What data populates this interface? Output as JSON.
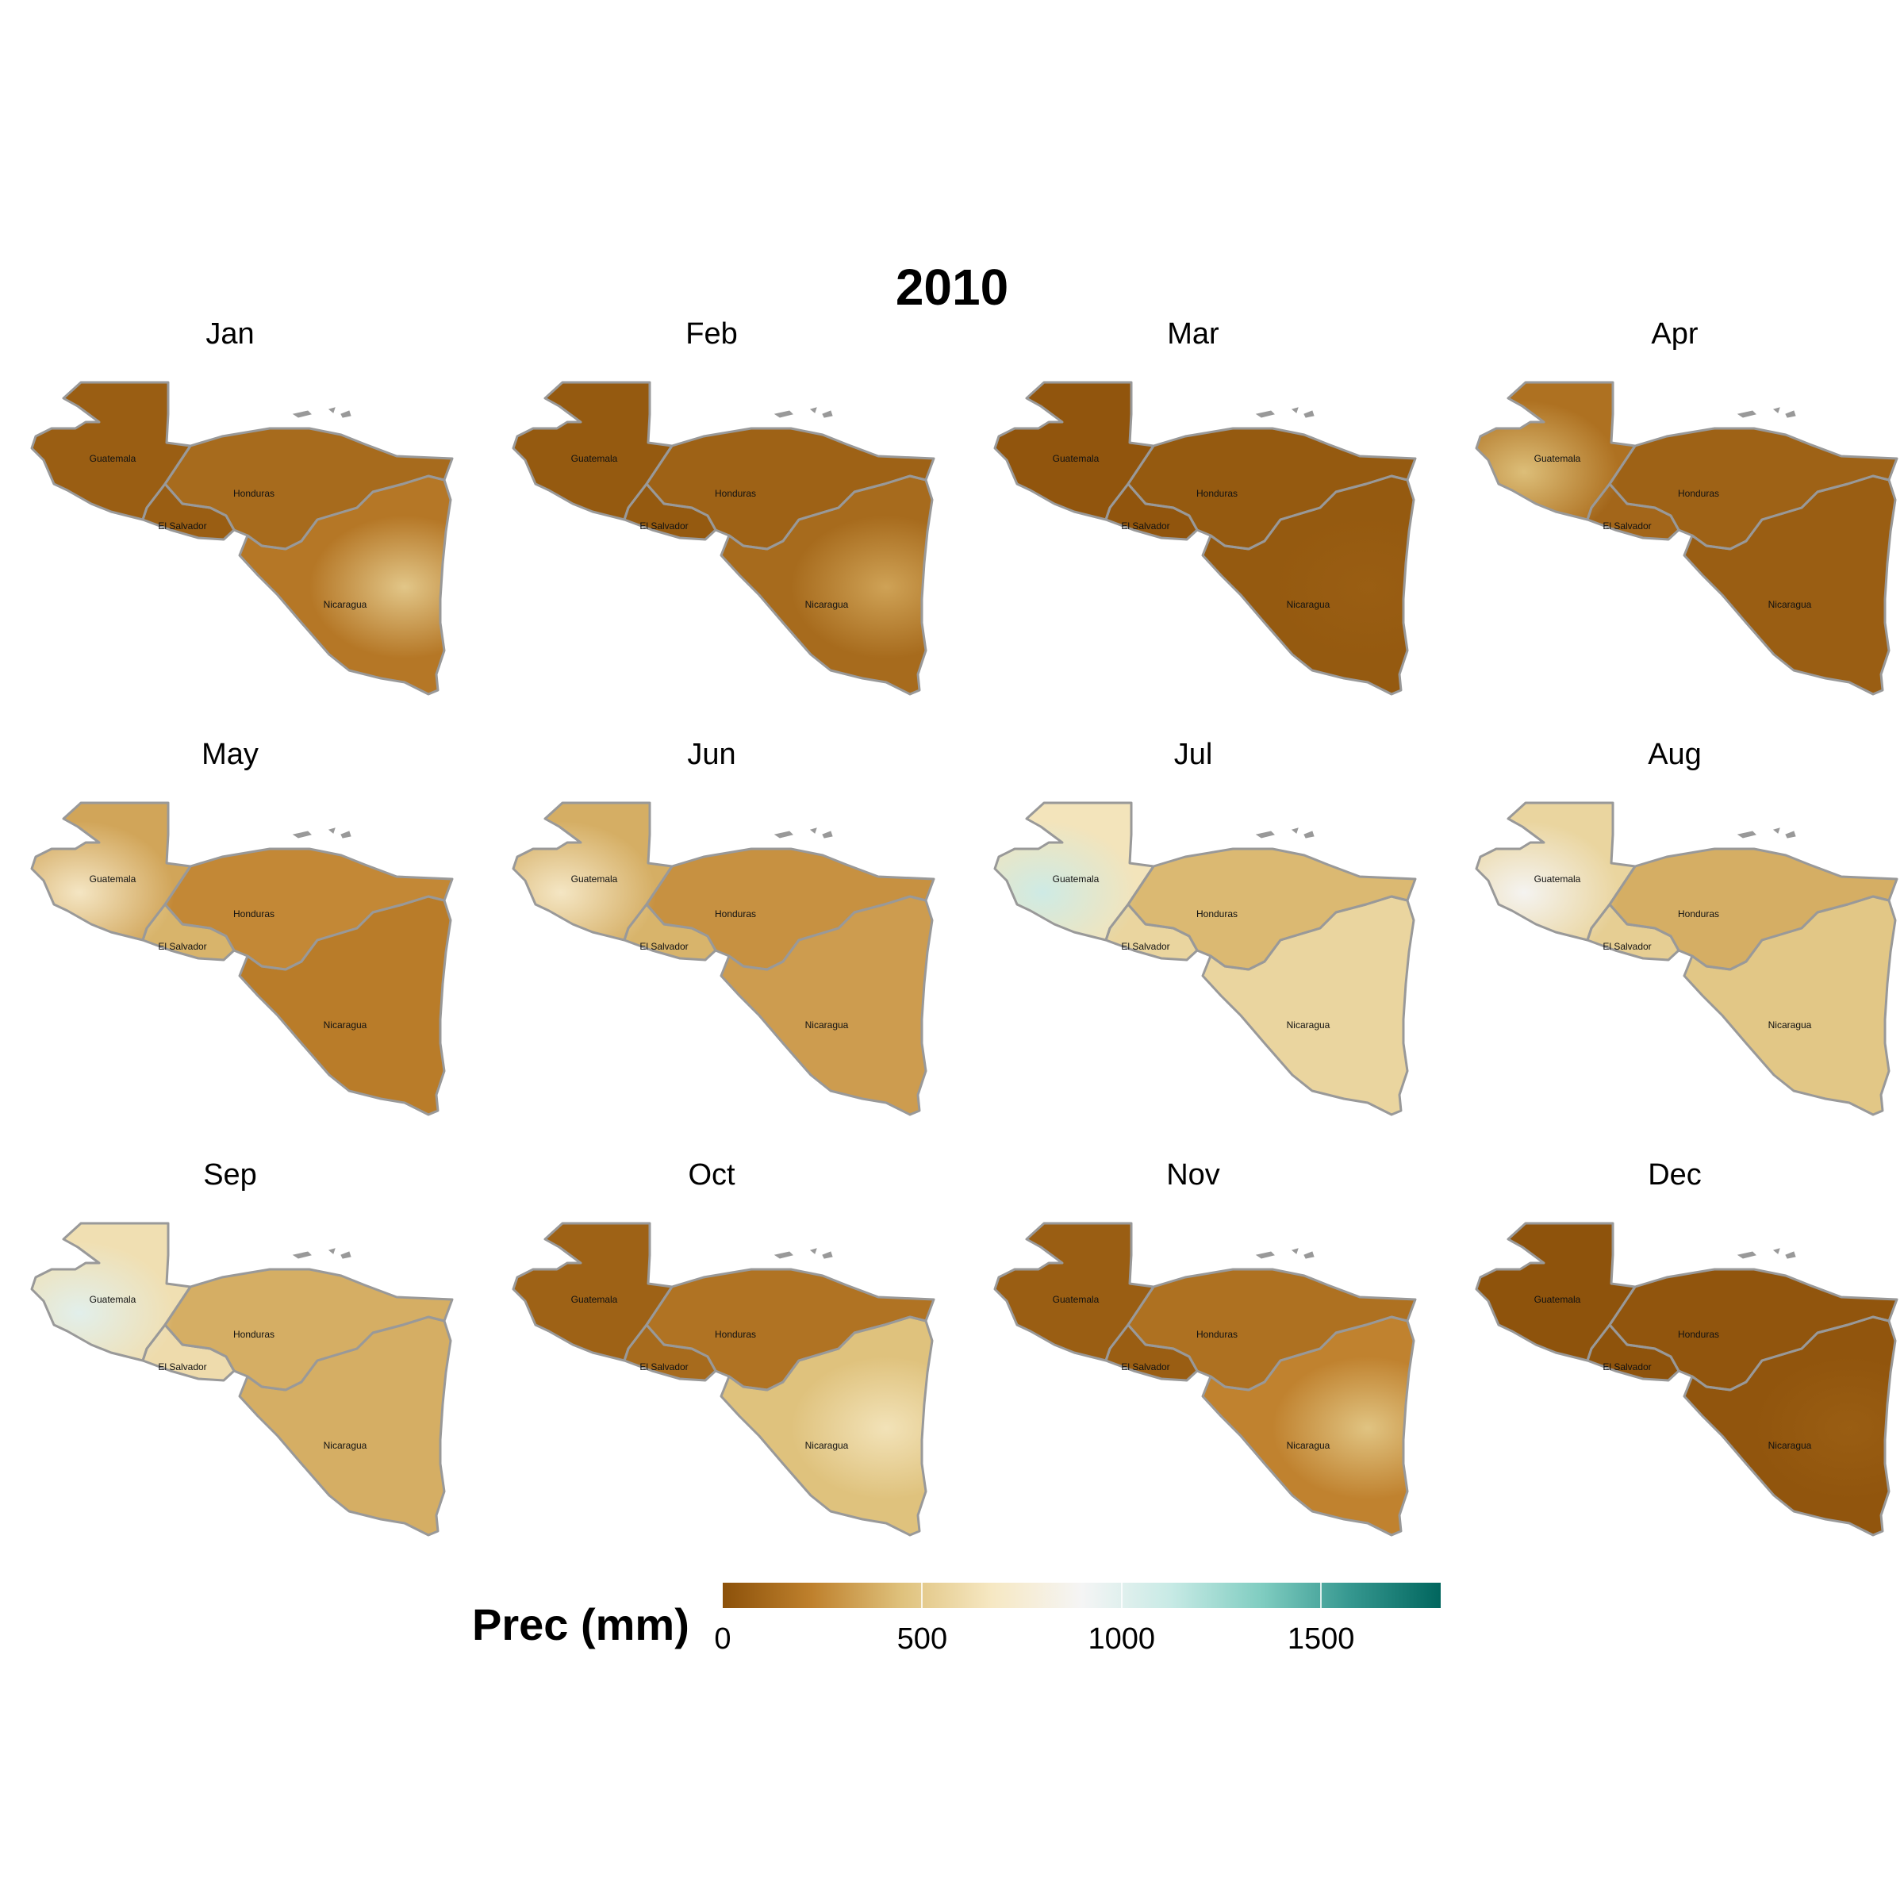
{
  "title": "2010",
  "country_labels": [
    "Guatemala",
    "Honduras",
    "El Salvador",
    "Nicaragua"
  ],
  "months": [
    {
      "name": "Jan",
      "guatemala": 60,
      "honduras": 120,
      "salvador": 60,
      "nicaragua": 180,
      "hotspot": 500,
      "wet_side": "east"
    },
    {
      "name": "Feb",
      "guatemala": 40,
      "honduras": 80,
      "salvador": 40,
      "nicaragua": 120,
      "hotspot": 350,
      "wet_side": "east"
    },
    {
      "name": "Mar",
      "guatemala": 20,
      "honduras": 40,
      "salvador": 20,
      "nicaragua": 40,
      "hotspot": 60,
      "wet_side": "east"
    },
    {
      "name": "Apr",
      "guatemala": 150,
      "honduras": 80,
      "salvador": 100,
      "nicaragua": 60,
      "hotspot": 450,
      "wet_side": "west"
    },
    {
      "name": "May",
      "guatemala": 350,
      "honduras": 250,
      "salvador": 400,
      "nicaragua": 200,
      "hotspot": 700,
      "wet_side": "west"
    },
    {
      "name": "Jun",
      "guatemala": 380,
      "honduras": 280,
      "salvador": 400,
      "nicaragua": 320,
      "hotspot": 700,
      "wet_side": "west"
    },
    {
      "name": "Jul",
      "guatemala": 650,
      "honduras": 420,
      "salvador": 560,
      "nicaragua": 560,
      "hotspot": 1100,
      "wet_side": "west"
    },
    {
      "name": "Aug",
      "guatemala": 560,
      "honduras": 380,
      "salvador": 520,
      "nicaragua": 480,
      "hotspot": 900,
      "wet_side": "west"
    },
    {
      "name": "Sep",
      "guatemala": 620,
      "honduras": 380,
      "salvador": 600,
      "nicaragua": 380,
      "hotspot": 1000,
      "wet_side": "west"
    },
    {
      "name": "Oct",
      "guatemala": 80,
      "honduras": 160,
      "salvador": 120,
      "nicaragua": 450,
      "hotspot": 650,
      "wet_side": "east"
    },
    {
      "name": "Nov",
      "guatemala": 60,
      "honduras": 150,
      "salvador": 60,
      "nicaragua": 230,
      "hotspot": 480,
      "wet_side": "east"
    },
    {
      "name": "Dec",
      "guatemala": 10,
      "honduras": 20,
      "salvador": 10,
      "nicaragua": 20,
      "hotspot": 60,
      "wet_side": "east"
    }
  ],
  "legend": {
    "title": "Prec (mm)",
    "min": 0,
    "max": 1800,
    "ticks": [
      0,
      500,
      1000,
      1500
    ],
    "tick_labels": [
      "0",
      "500",
      "1000",
      "1500"
    ],
    "colors": [
      "#8c510a",
      "#bf812d",
      "#dfc27d",
      "#f6e8c3",
      "#f5f5f5",
      "#c7eae5",
      "#80cdc1",
      "#35978f",
      "#01665e"
    ],
    "border_color": "#999999"
  }
}
